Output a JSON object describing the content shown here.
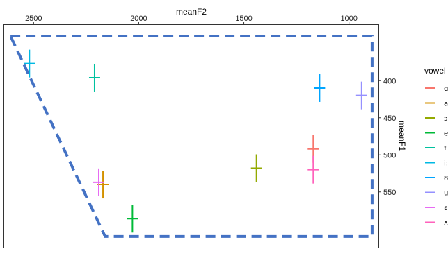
{
  "chart_data": {
    "type": "scatter",
    "xlabel": "meanF2",
    "ylabel": "meanF1",
    "x_axis_position": "top",
    "y_axis_position": "right",
    "x_reversed": true,
    "y_reversed": true,
    "xlim": [
      2640,
      860
    ],
    "ylim": [
      325,
      625
    ],
    "x_ticks": [
      2500,
      2000,
      1500,
      1000
    ],
    "y_ticks": [
      400,
      450,
      500,
      550
    ],
    "grid": false,
    "legend": {
      "title": "vowel",
      "placement": "right"
    },
    "series": [
      {
        "name": "ɑ",
        "color": "#F8766D",
        "x": 1170,
        "y": 492
      },
      {
        "name": "a",
        "color": "#D39200",
        "x": 2170,
        "y": 540
      },
      {
        "name": "ɔ",
        "color": "#93AA00",
        "x": 1440,
        "y": 518
      },
      {
        "name": "e",
        "color": "#00BA38",
        "x": 2030,
        "y": 586
      },
      {
        "name": "ɪ",
        "color": "#00C19F",
        "x": 2210,
        "y": 396
      },
      {
        "name": "i:",
        "color": "#00B9E3",
        "x": 2520,
        "y": 377
      },
      {
        "name": "ʊ",
        "color": "#00A5FF",
        "x": 1140,
        "y": 410
      },
      {
        "name": "u",
        "color": "#9590FF",
        "x": 940,
        "y": 420
      },
      {
        "name": "ɛ",
        "color": "#E76BF3",
        "x": 2190,
        "y": 537
      },
      {
        "name": "ʌ",
        "color": "#FF62BC",
        "x": 1170,
        "y": 520
      }
    ],
    "outline_polygon": {
      "color": "#4472C4",
      "points": [
        [
          2610,
          340
        ],
        [
          890,
          340
        ],
        [
          890,
          610
        ],
        [
          2160,
          610
        ],
        [
          2610,
          340
        ]
      ]
    }
  }
}
